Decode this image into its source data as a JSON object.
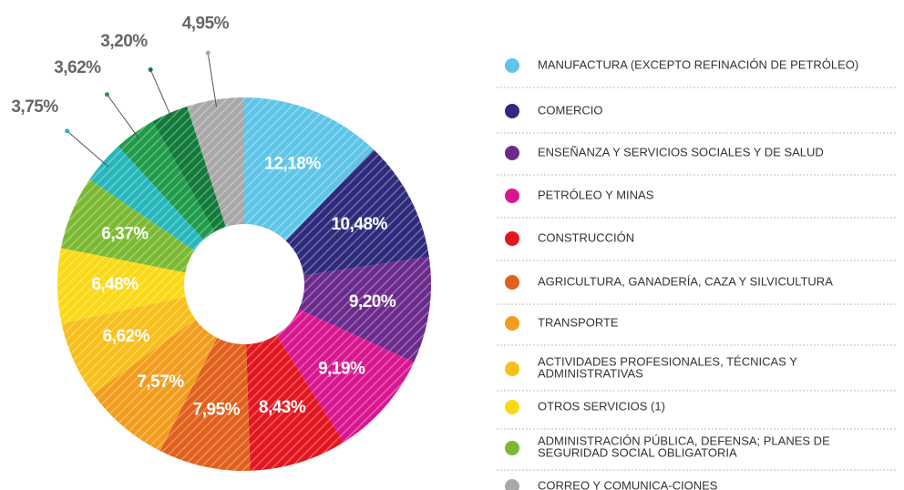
{
  "chart_data": {
    "type": "donut",
    "categories": [
      "MANUFACTURA (EXCEPTO REFINACIÓN DE PETRÓLEO)",
      "COMERCIO",
      "ENSEÑANZA  Y SERVICIOS SOCIALES Y DE SALUD",
      "PETRÓLEO Y MINAS",
      "CONSTRUCCIÓN",
      "AGRICULTURA, GANADERÍA, CAZA Y SILVICULTURA",
      "TRANSPORTE",
      "ACTIVIDADES PROFESIONALES, TÉCNICAS Y ADMINISTRATIVAS",
      "OTROS SERVICIOS (1)",
      "ADMINISTRACIÓN PÚBLICA, DEFENSA; PLANES DE SEGURIDAD SOCIAL OBLIGATORIA",
      null,
      null,
      null,
      "CORREO Y COMUNICA-CIONES"
    ],
    "values": [
      12.18,
      10.48,
      9.2,
      9.19,
      8.43,
      7.95,
      7.57,
      6.62,
      6.48,
      6.37,
      3.75,
      3.62,
      3.2,
      4.95
    ],
    "value_labels": [
      "12,18%",
      "10,48%",
      "9,20%",
      "9,19%",
      "8,43%",
      "7,95%",
      "7,57%",
      "6,62%",
      "6,48%",
      "6,37%",
      "3,75%",
      "3,62%",
      "3,20%",
      "4,95%"
    ],
    "colors": [
      "#5ec5e8",
      "#2e2a7c",
      "#6b2a8c",
      "#d8168e",
      "#e3161f",
      "#e0601c",
      "#f29c1c",
      "#f7bf1a",
      "#fbd916",
      "#7bb932",
      "#27b7bb",
      "#1f9b4a",
      "#127a3a",
      "#a8a8a8"
    ]
  }
}
